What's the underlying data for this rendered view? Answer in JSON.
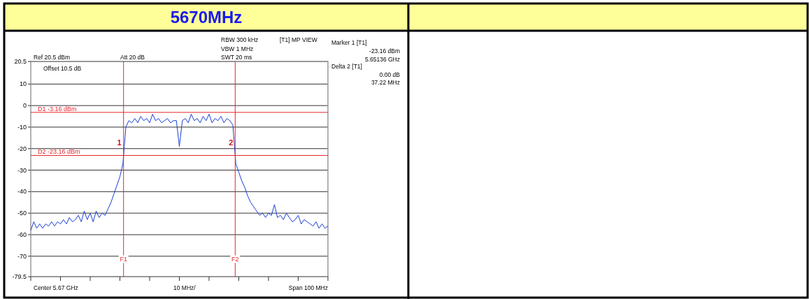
{
  "chart_data": {
    "type": "line",
    "title": "5670MHz",
    "categories": [
      null,
      null,
      null,
      null,
      null,
      null,
      null,
      null,
      null,
      null,
      null,
      null,
      null,
      null,
      null,
      null,
      null,
      null,
      null,
      null,
      null,
      null,
      null,
      null,
      null,
      null,
      null,
      null,
      null,
      null,
      null,
      null,
      null,
      null,
      null,
      null,
      null,
      null,
      null,
      null,
      null,
      null,
      null,
      null,
      null,
      null,
      null,
      null,
      null,
      null,
      null,
      null,
      null,
      null,
      null,
      null,
      null,
      null,
      null,
      null,
      null,
      null,
      null,
      null,
      null,
      null,
      null,
      null,
      null,
      null,
      null,
      null,
      null,
      null,
      null,
      null,
      null,
      null,
      null,
      null,
      null,
      null,
      null,
      null,
      null,
      null,
      null,
      null,
      null,
      null,
      null,
      null,
      null,
      null,
      null,
      null,
      null,
      null,
      null,
      null,
      null
    ],
    "ylim": [
      -79.5,
      20.5
    ],
    "yticks": [
      -79.5,
      -70,
      -60,
      -50,
      -40,
      -30,
      -20,
      -10,
      0,
      10,
      20.5
    ],
    "grid": "y",
    "marker": "none",
    "line_style": "solid",
    "series": [
      {
        "color": "#1a3fd6",
        "values": [
          -58,
          -54,
          -57,
          -55,
          -57,
          -55,
          -56,
          -54,
          -56,
          -54,
          -55,
          -53,
          -55,
          -52,
          -54,
          -53,
          -51,
          -54,
          -49,
          -53,
          -50,
          -54,
          -49,
          -52,
          -50,
          -51,
          -48,
          -45,
          -41,
          -37,
          -33,
          -27,
          -10,
          -7,
          -8,
          -6,
          -8,
          -5,
          -7,
          -6,
          -8,
          -4,
          -7,
          -6,
          -8,
          -7,
          -6,
          -8,
          -7,
          -7,
          -19,
          -7,
          -6,
          -8,
          -4,
          -7,
          -6,
          -8,
          -5,
          -7,
          -4,
          -8,
          -6,
          -7,
          -5,
          -8,
          -6,
          -7,
          -9,
          -27,
          -31,
          -35,
          -38,
          -42,
          -45,
          -47,
          -49,
          -51,
          -50,
          -52,
          -50,
          -51,
          -46,
          -52,
          -51,
          -53,
          -50,
          -52,
          -54,
          -53,
          -51,
          -55,
          -53,
          -54,
          -55,
          -56,
          -54,
          -57,
          -55,
          -57,
          -56
        ]
      }
    ],
    "ref_lines": [
      {
        "axis": "y",
        "value": -3.16,
        "label": "D1 -3.16 dBm",
        "color": "#e8262c"
      },
      {
        "axis": "y",
        "value": -23.16,
        "label": "D2 -23.16 dBm",
        "color": "#e8262c"
      }
    ],
    "annotations": [
      "Ref 20.5 dBm",
      "Att 20 dB",
      "Offset 10.5 dB",
      "RBW 300 kHz",
      "VBW 1 MHz",
      "SWT 20 ms",
      "[T1] MP VIEW",
      "Marker 1 [T1]",
      "-23.16 dBm",
      "5.65136 GHz",
      "Delta 2 [T1]",
      "0.00 dB",
      "37.22 MHz",
      "Center 5.67 GHz",
      "10 MHz/",
      "Span 100 MHz",
      "F1",
      "F2",
      "1",
      "2"
    ]
  }
}
